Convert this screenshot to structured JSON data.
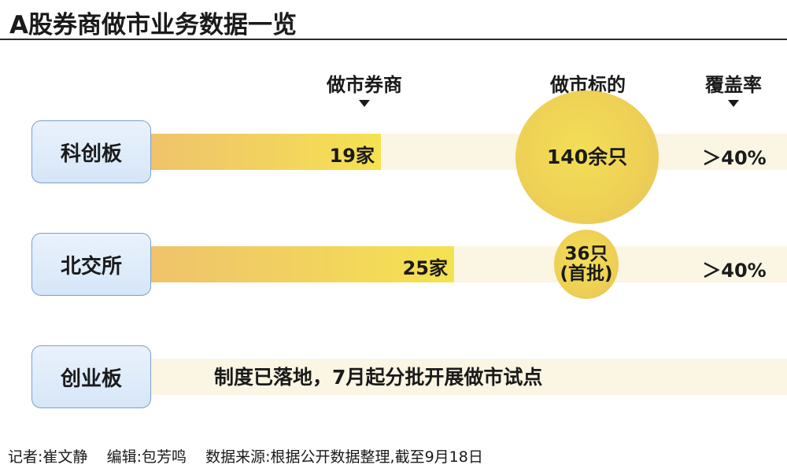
{
  "chart_data": {
    "type": "table",
    "title": "A股券商做市业务数据一览",
    "columns": [
      "做市券商",
      "做市标的",
      "覆盖率"
    ],
    "rows": [
      {
        "board": "科创板",
        "brokers": 19,
        "brokers_label": "19家",
        "targets_label": "140余只",
        "coverage": "＞40%"
      },
      {
        "board": "北交所",
        "brokers": 25,
        "brokers_label": "25家",
        "targets_label": "36只",
        "targets_note": "(首批)",
        "coverage": "＞40%"
      },
      {
        "board": "创业板",
        "note": "制度已落地，7月起分批开展做市试点"
      }
    ],
    "bar_scale_max": 31
  },
  "footer": {
    "reporter": "记者:崔文静",
    "editor": "编辑:包芳鸣",
    "source": "数据来源:根据公开数据整理,截至9月18日"
  },
  "colors": {
    "bar_start": "#efc36c",
    "bar_end": "#f5e250",
    "track": "#fbf5e3",
    "board_fill": "#dce9f8",
    "board_border": "#7e9fc8"
  }
}
